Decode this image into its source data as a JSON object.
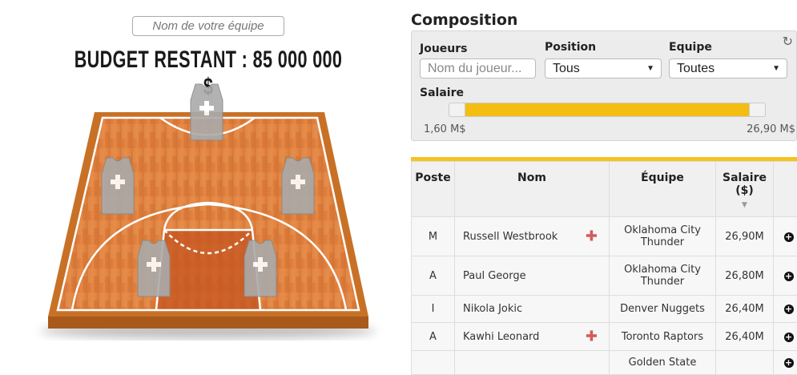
{
  "team": {
    "placeholder": "Nom de votre équipe",
    "budget": "BUDGET RESTANT : 85 000 000 $"
  },
  "court": {
    "jersey_count": 5
  },
  "composition": {
    "title": "Composition",
    "filters": {
      "players_label": "Joueurs",
      "players_placeholder": "Nom du joueur...",
      "position_label": "Position",
      "position_value": "Tous",
      "team_label": "Equipe",
      "team_value": "Toutes",
      "salary_label": "Salaire",
      "salary_min": "1,60 M$",
      "salary_max": "26,90 M$",
      "refresh_icon": "refresh-icon"
    },
    "table": {
      "headers": [
        "Poste",
        "Nom",
        "Équipe",
        "Salaire",
        "($)"
      ],
      "rows": [
        {
          "pos": "M",
          "name": "Russell Westbrook",
          "team": "Oklahoma City Thunder",
          "salary": "26,90M",
          "injured": true
        },
        {
          "pos": "A",
          "name": "Paul George",
          "team": "Oklahoma City Thunder",
          "salary": "26,80M",
          "injured": false
        },
        {
          "pos": "I",
          "name": "Nikola Jokic",
          "team": "Denver Nuggets",
          "salary": "26,40M",
          "injured": false
        },
        {
          "pos": "A",
          "name": "Kawhi Leonard",
          "team": "Toronto Raptors",
          "salary": "26,40M",
          "injured": true
        },
        {
          "pos": "",
          "name": "",
          "team": "Golden State",
          "salary": "",
          "injured": false
        }
      ]
    },
    "accent": "#f3bd12"
  }
}
